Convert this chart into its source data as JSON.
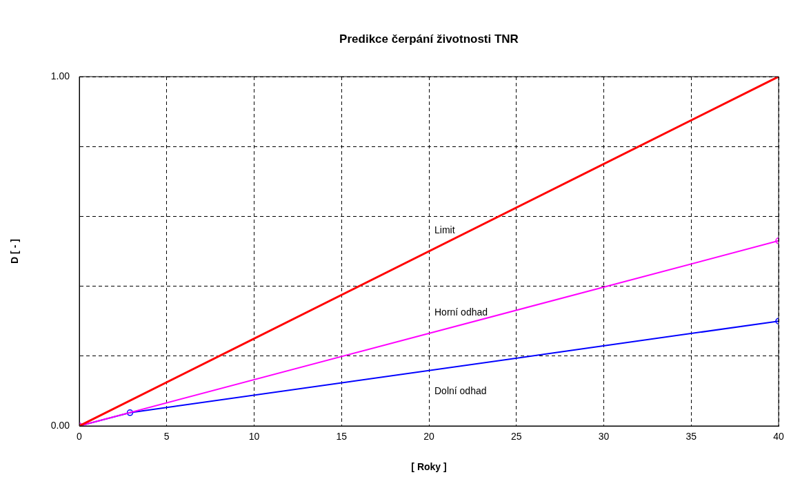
{
  "chart_data": {
    "type": "line",
    "title": "Predikce čerpání životnosti TNR",
    "xlabel": "[ Roky ]",
    "ylabel": "D [ - ]",
    "xlim": [
      0,
      40
    ],
    "xticks": [
      0,
      5,
      10,
      15,
      20,
      25,
      30,
      35,
      40
    ],
    "ylim": [
      0,
      1
    ],
    "yticks": [
      {
        "value": 0,
        "label": "0.00"
      },
      {
        "value": 0.2,
        "label": null
      },
      {
        "value": 0.4,
        "label": null
      },
      {
        "value": 0.6,
        "label": null
      },
      {
        "value": 0.8,
        "label": null
      },
      {
        "value": 1,
        "label": "1.00"
      }
    ],
    "grid": true,
    "line_style": "solid",
    "series": [
      {
        "name": "Limit",
        "color": "#ff0000",
        "x": [
          0,
          40
        ],
        "values": [
          0,
          1
        ],
        "marker": "none"
      },
      {
        "name": "Horní odhad",
        "color": "#ff00ff",
        "x": [
          0,
          40
        ],
        "values": [
          0,
          0.53
        ],
        "marker": "circle"
      },
      {
        "name": "Dolní odhad",
        "color": "#0000ff",
        "x": [
          0,
          2.9,
          40
        ],
        "values": [
          0,
          0.038,
          0.3
        ],
        "marker": "circle"
      }
    ]
  }
}
